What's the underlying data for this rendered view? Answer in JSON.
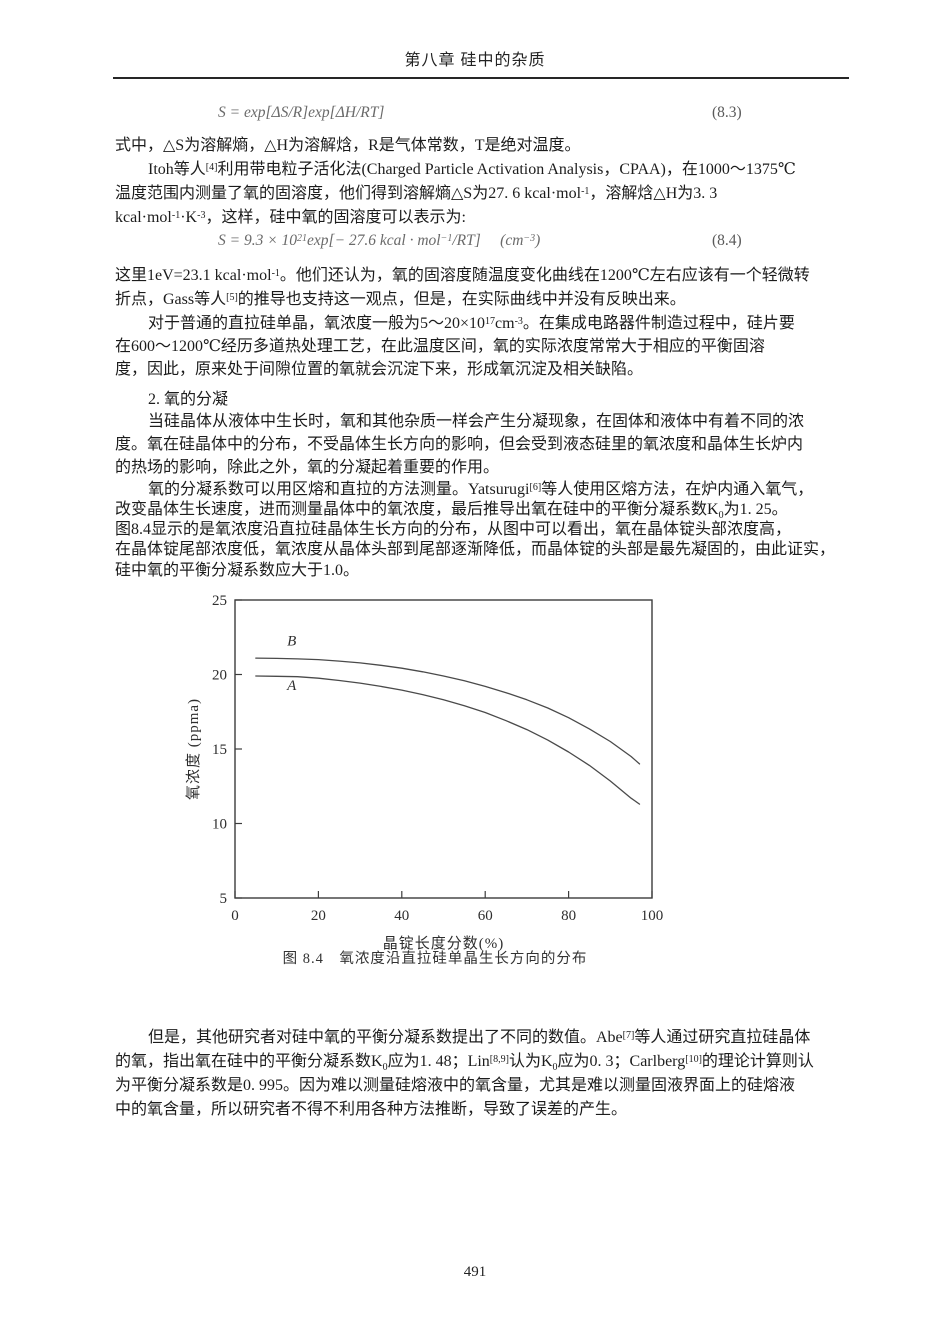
{
  "header": {
    "chapter_title": "第八章 硅中的杂质"
  },
  "page_number": "491",
  "equations": {
    "eq83": {
      "body": [
        "S = exp[ΔS/R]exp[ΔH/RT]"
      ],
      "number": "(8.3)"
    },
    "eq84": {
      "body": [
        "S = 9.3 × 10",
        {
          "t": "21",
          "sup": true
        },
        "exp[− 27.6 kcal · mol",
        {
          "t": "−1",
          "sup": true
        },
        "/RT]     (cm",
        {
          "t": "−3",
          "sup": true
        },
        ")"
      ],
      "number": "(8.4)"
    }
  },
  "content": {
    "lines": [
      [
        "式中，△S为溶解熵，△H为溶解焓，R是气体常数，T是绝对温度。"
      ],
      [
        "Itoh等人",
        {
          "t": "[4]",
          "sup": true
        },
        "利用带电粒子活化法(Charged Particle Activation Analysis，CPAA)，在1000～1375℃"
      ],
      [
        "温度范围内测量了氧的固溶度，他们得到溶解熵△S为27. 6 kcal·mol",
        {
          "t": "-1",
          "sup": true
        },
        "，溶解焓△H为3. 3"
      ],
      [
        "kcal·mol",
        {
          "t": "-1",
          "sup": true
        },
        "·K",
        {
          "t": "-3",
          "sup": true
        },
        "，这样，硅中氧的固溶度可以表示为:"
      ],
      [
        "这里1eV=23.1 kcal·mol",
        {
          "t": "-1",
          "sup": true
        },
        "。他们还认为，氧的固溶度随温度变化曲线在1200℃左右应该有一个轻微转"
      ],
      [
        "折点，Gass等人",
        {
          "t": "[5]",
          "sup": true
        },
        "的推导也支持这一观点，但是，在实际曲线中并没有反映出来。"
      ],
      [
        "对于普通的直拉硅单晶，氧浓度一般为5～20×10",
        {
          "t": "17",
          "sup": true
        },
        "cm",
        {
          "t": "-3",
          "sup": true
        },
        "。在集成电路器件制造过程中，硅片要"
      ],
      [
        "在600～1200℃经历多道热处理工艺，在此温度区间，氧的实际浓度常常大于相应的平衡固溶"
      ],
      [
        "度，因此，原来处于间隙位置的氧就会沉淀下来，形成氧沉淀及相关缺陷。"
      ],
      [
        "2. 氧的分凝"
      ],
      [
        "当硅晶体从液体中生长时，氧和其他杂质一样会产生分凝现象，在固体和液体中有着不同的浓"
      ],
      [
        "度。氧在硅晶体中的分布，不受晶体生长方向的影响，但会受到液态硅里的氧浓度和晶体生长炉内"
      ],
      [
        "的热场的影响，除此之外，氧的分凝起着重要的作用。"
      ],
      [
        "氧的分凝系数可以用区熔和直拉的方法测量。Yatsurugi",
        {
          "t": "[6]",
          "sup": true
        },
        "等人使用区熔方法，在炉内通入氧气，"
      ],
      [
        "改变晶体生长速度，进而测量晶体中的氧浓度，最后推导出氧在硅中的平衡分凝系数K",
        {
          "t": "0",
          "sub": true
        },
        "为1. 25。"
      ],
      [
        "图8.4显示的是氧浓度沿直拉硅晶体生长方向的分布，从图中可以看出，氧在晶体锭头部浓度高，"
      ],
      [
        "在晶体锭尾部浓度低，氧浓度从晶体头部到尾部逐渐降低，而晶体锭的头部是最先凝固的，由此证实，"
      ],
      [
        "硅中氧的平衡分凝系数应大于1.0。"
      ],
      [
        "但是，其他研究者对硅中氧的平衡分凝系数提出了不同的数值。Abe",
        {
          "t": "[7]",
          "sup": true
        },
        "等人通过研究直拉硅晶体"
      ],
      [
        "的氧，指出氧在硅中的平衡分凝系数K",
        {
          "t": "0",
          "sub": true
        },
        "应为1. 48；Lin",
        {
          "t": "[8,9]",
          "sup": true
        },
        "认为K",
        {
          "t": "0",
          "sub": true
        },
        "应为0. 3；Carlberg",
        {
          "t": "[10]",
          "sup": true
        },
        "的理论计算则认"
      ],
      [
        "为平衡分凝系数是0. 995。因为难以测量硅熔液中的氧含量，尤其是难以测量固液界面上的硅熔液"
      ],
      [
        "中的氧含量，所以研究者不得不利用各种方法推断，导致了误差的产生。"
      ]
    ]
  },
  "figure": {
    "caption": "图 8.4　氧浓度沿直拉硅单晶生长方向的分布"
  },
  "chart_data": {
    "type": "line",
    "title": "图 8.4 氧浓度沿直拉硅单晶生长方向的分布",
    "xlabel": "晶锭长度分数(%)",
    "ylabel": "氧浓度 (ppma)",
    "xlim": [
      0,
      100
    ],
    "ylim": [
      5,
      25
    ],
    "x_ticks": [
      0,
      20,
      40,
      60,
      80,
      100
    ],
    "y_ticks": [
      5,
      10,
      15,
      20,
      25
    ],
    "grid": false,
    "legend_position": "inline-labels",
    "series": [
      {
        "name": "B",
        "label_pos": [
          12.5,
          21.95
        ],
        "points": [
          [
            5,
            21.1
          ],
          [
            10,
            21.08
          ],
          [
            15,
            21.05
          ],
          [
            20,
            21.0
          ],
          [
            25,
            20.9
          ],
          [
            30,
            20.78
          ],
          [
            35,
            20.62
          ],
          [
            40,
            20.42
          ],
          [
            45,
            20.18
          ],
          [
            50,
            19.9
          ],
          [
            55,
            19.58
          ],
          [
            60,
            19.2
          ],
          [
            65,
            18.78
          ],
          [
            70,
            18.3
          ],
          [
            75,
            17.75
          ],
          [
            80,
            17.1
          ],
          [
            85,
            16.35
          ],
          [
            90,
            15.5
          ],
          [
            95,
            14.5
          ],
          [
            97,
            14.0
          ]
        ]
      },
      {
        "name": "A",
        "label_pos": [
          12.5,
          18.95
        ],
        "points": [
          [
            5,
            19.9
          ],
          [
            10,
            19.88
          ],
          [
            15,
            19.85
          ],
          [
            20,
            19.75
          ],
          [
            25,
            19.6
          ],
          [
            30,
            19.42
          ],
          [
            35,
            19.2
          ],
          [
            40,
            18.95
          ],
          [
            45,
            18.65
          ],
          [
            50,
            18.3
          ],
          [
            55,
            17.9
          ],
          [
            60,
            17.45
          ],
          [
            65,
            16.9
          ],
          [
            70,
            16.3
          ],
          [
            75,
            15.6
          ],
          [
            80,
            14.8
          ],
          [
            85,
            13.9
          ],
          [
            90,
            12.85
          ],
          [
            95,
            11.7
          ],
          [
            97,
            11.3
          ]
        ]
      }
    ]
  }
}
